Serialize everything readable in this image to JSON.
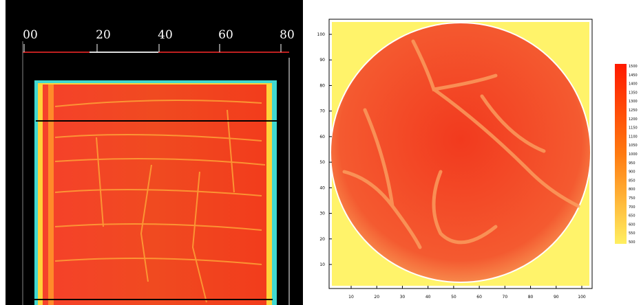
{
  "left_panel": {
    "ruler_labels": [
      "00",
      "20",
      "40",
      "60",
      "80"
    ]
  },
  "right_panel": {
    "x_ticks": [
      "10",
      "20",
      "30",
      "40",
      "50",
      "60",
      "70",
      "80",
      "90",
      "100"
    ],
    "y_ticks": [
      "10",
      "20",
      "30",
      "40",
      "50",
      "60",
      "70",
      "80",
      "90",
      "100"
    ],
    "colorbar_labels": [
      "1500",
      "1450",
      "1400",
      "1350",
      "1300",
      "1250",
      "1200",
      "1150",
      "1100",
      "1050",
      "1000",
      "950",
      "900",
      "850",
      "800",
      "750",
      "700",
      "650",
      "600",
      "550",
      "500"
    ]
  }
}
